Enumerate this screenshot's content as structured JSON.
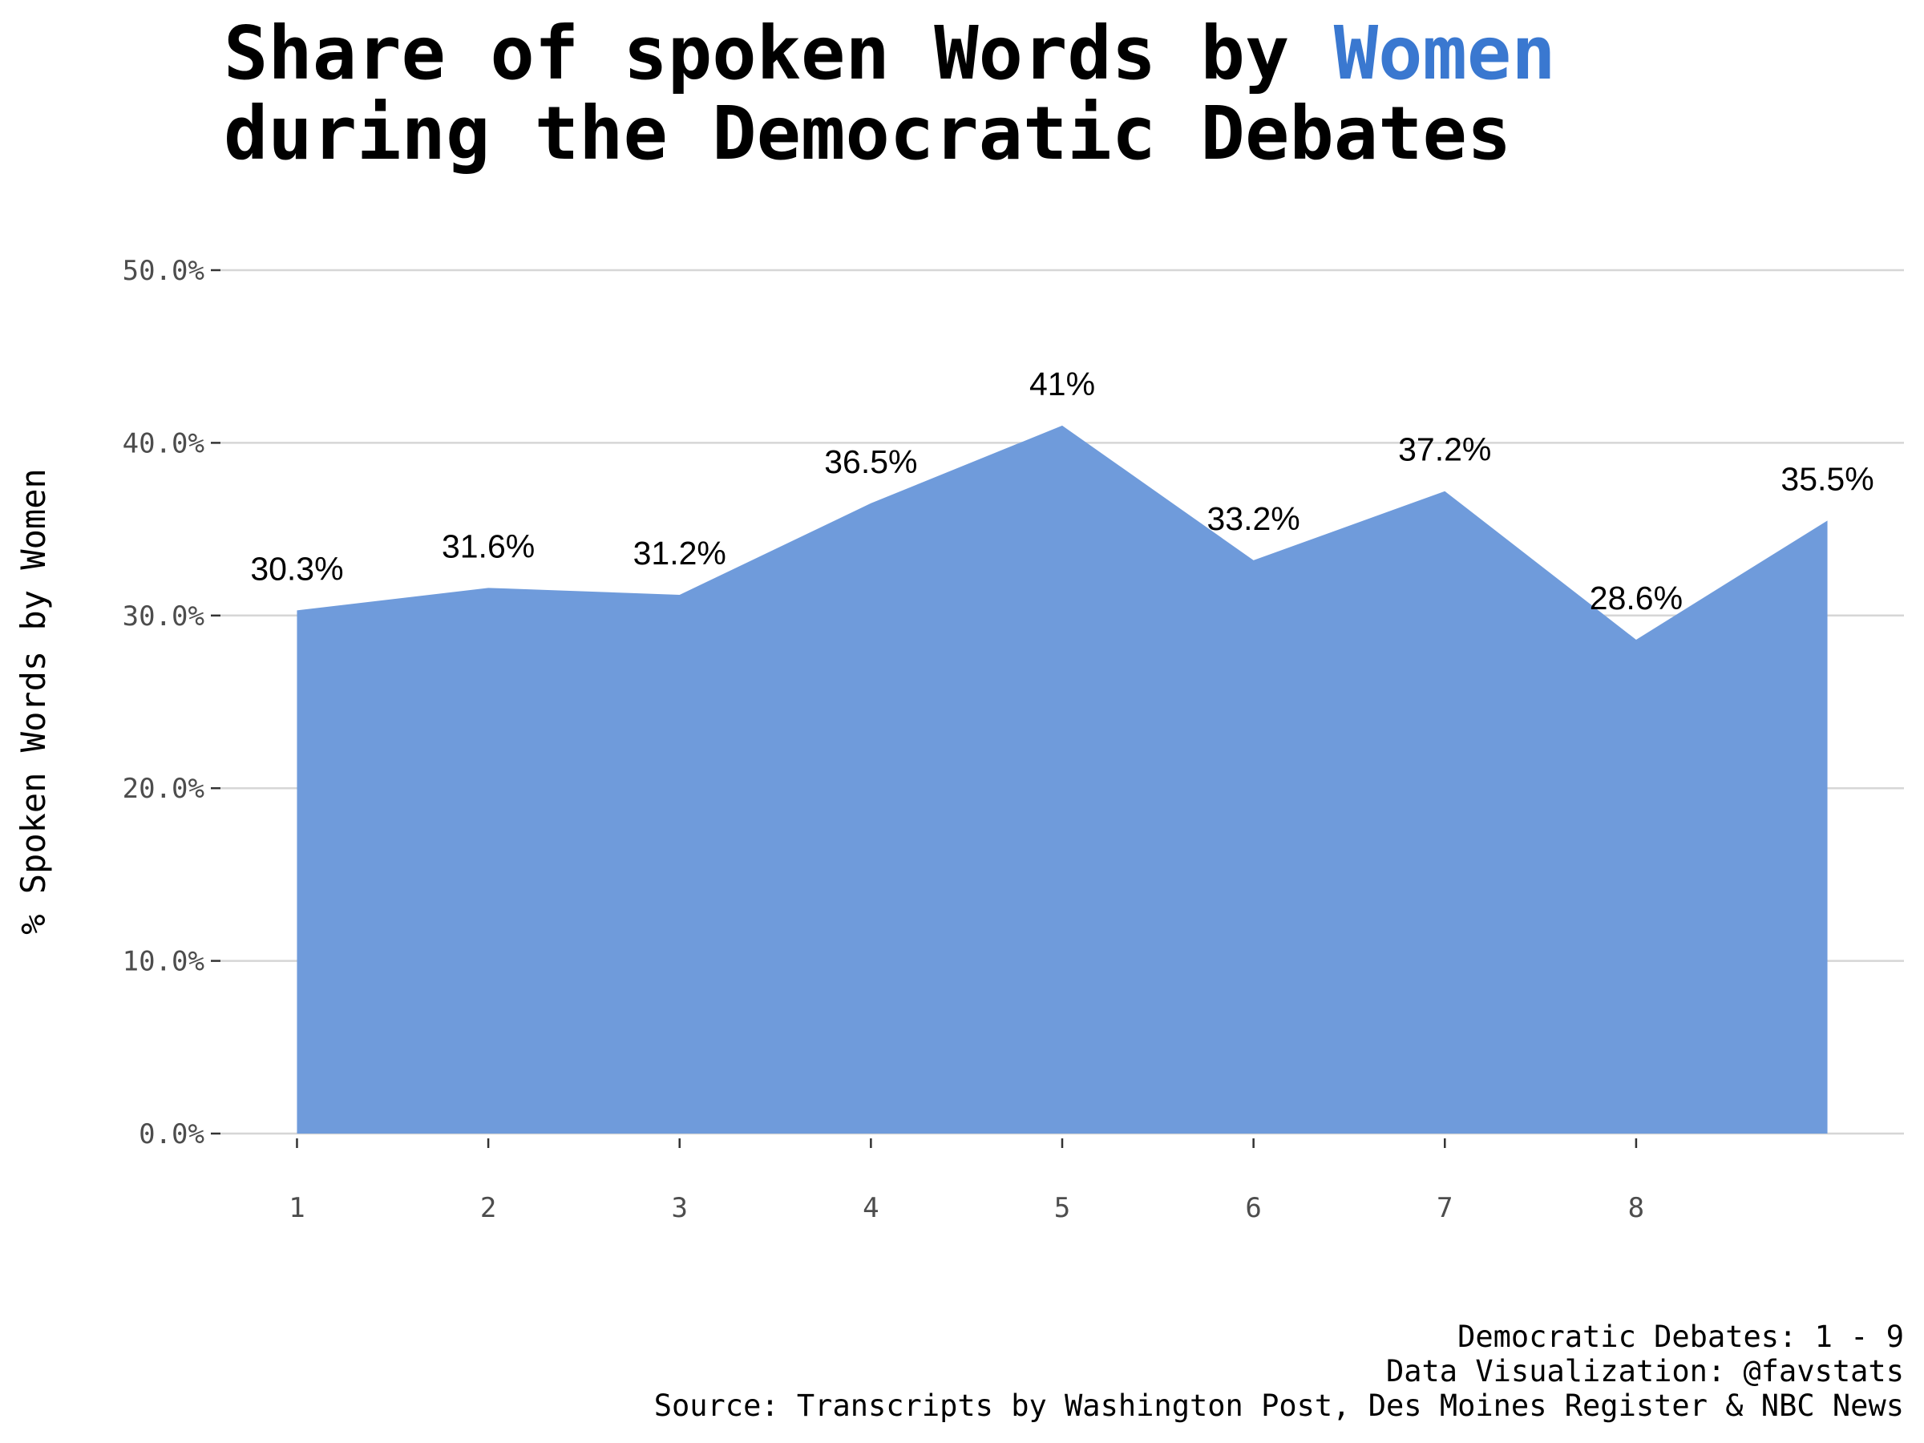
{
  "chart_data": {
    "type": "area",
    "title_line1": "Share of spoken Words by",
    "title_highlight": "Women",
    "title_highlight_color": "#3a78d0",
    "title_line2": "during the Democratic Debates",
    "y_axis_label": "% Spoken Words by Women",
    "x": [
      1,
      2,
      3,
      4,
      5,
      6,
      7,
      8,
      9
    ],
    "values": [
      30.3,
      31.6,
      31.2,
      36.5,
      41,
      33.2,
      37.2,
      28.6,
      35.5
    ],
    "value_labels": [
      "30.3%",
      "31.6%",
      "31.2%",
      "36.5%",
      "41%",
      "33.2%",
      "37.2%",
      "28.6%",
      "35.5%"
    ],
    "color": "#6f9bdb",
    "xlim": [
      0.6,
      9.4
    ],
    "xticks": [
      1,
      2,
      3,
      4,
      5,
      6,
      7,
      8
    ],
    "ylim": [
      0,
      50
    ],
    "yticks": [
      {
        "value": 0,
        "label": "0.0%"
      },
      {
        "value": 10,
        "label": "10.0%"
      },
      {
        "value": 20,
        "label": "20.0%"
      },
      {
        "value": 30,
        "label": "30.0%"
      },
      {
        "value": 40,
        "label": "40.0%"
      },
      {
        "value": 50,
        "label": "50.0%"
      }
    ],
    "grid": true,
    "caption": [
      "Democratic Debates: 1 - 9",
      "Data Visualization: @favstats",
      "Source: Transcripts by Washington Post, Des Moines Register & NBC News"
    ]
  }
}
